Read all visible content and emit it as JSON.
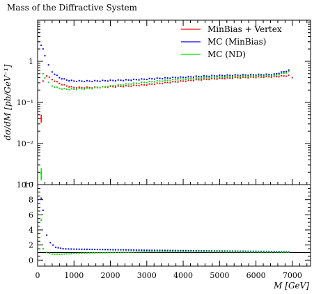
{
  "chart_data": [
    {
      "type": "scatter",
      "title": "Mass of the Diffractive System",
      "ylabel": "dσ/dM [pb/GeV⁻¹]",
      "xlim": [
        0,
        7500
      ],
      "ylim": [
        0.001,
        10
      ],
      "yscale": "log",
      "y_ticks": [
        {
          "value": 1,
          "label": "1"
        },
        {
          "value": 0.1,
          "label": "10⁻¹"
        },
        {
          "value": 0.01,
          "label": "10⁻²"
        },
        {
          "value": 0.001,
          "label": "10⁻³"
        }
      ],
      "legend": "top-right",
      "series": [
        {
          "name": "MinBias + Vertex",
          "color": "#ff0000",
          "points": [
            {
              "x": 100,
              "y": 0.04
            },
            {
              "x": 150,
              "y": 0.33
            },
            {
              "x": 250,
              "y": 0.45
            },
            {
              "x": 400,
              "y": 0.36
            },
            {
              "x": 600,
              "y": 0.29
            },
            {
              "x": 800,
              "y": 0.25
            },
            {
              "x": 1000,
              "y": 0.23
            },
            {
              "x": 1500,
              "y": 0.23
            },
            {
              "x": 2000,
              "y": 0.24
            },
            {
              "x": 2500,
              "y": 0.25
            },
            {
              "x": 3000,
              "y": 0.27
            },
            {
              "x": 3500,
              "y": 0.3
            },
            {
              "x": 4000,
              "y": 0.33
            },
            {
              "x": 4500,
              "y": 0.36
            },
            {
              "x": 5000,
              "y": 0.38
            },
            {
              "x": 5500,
              "y": 0.4
            },
            {
              "x": 6000,
              "y": 0.41
            },
            {
              "x": 6500,
              "y": 0.42
            },
            {
              "x": 6900,
              "y": 0.45
            },
            {
              "x": 7000,
              "y": 0.4
            }
          ]
        },
        {
          "name": "MC (MinBias)",
          "color": "#0000ff",
          "points": [
            {
              "x": 100,
              "y": 2.4
            },
            {
              "x": 150,
              "y": 2.0
            },
            {
              "x": 200,
              "y": 1.4
            },
            {
              "x": 300,
              "y": 0.8
            },
            {
              "x": 400,
              "y": 0.55
            },
            {
              "x": 600,
              "y": 0.4
            },
            {
              "x": 800,
              "y": 0.35
            },
            {
              "x": 1000,
              "y": 0.33
            },
            {
              "x": 1500,
              "y": 0.33
            },
            {
              "x": 2000,
              "y": 0.34
            },
            {
              "x": 2500,
              "y": 0.35
            },
            {
              "x": 3000,
              "y": 0.37
            },
            {
              "x": 3500,
              "y": 0.39
            },
            {
              "x": 4000,
              "y": 0.41
            },
            {
              "x": 4500,
              "y": 0.43
            },
            {
              "x": 5000,
              "y": 0.45
            },
            {
              "x": 5500,
              "y": 0.46
            },
            {
              "x": 6000,
              "y": 0.47
            },
            {
              "x": 6500,
              "y": 0.48
            },
            {
              "x": 6900,
              "y": 0.6
            }
          ]
        },
        {
          "name": "MC (ND)",
          "color": "#00dd00",
          "points": [
            {
              "x": 100,
              "y": 0.0018
            },
            {
              "x": 150,
              "y": 0.5
            },
            {
              "x": 200,
              "y": 0.4
            },
            {
              "x": 300,
              "y": 0.3
            },
            {
              "x": 400,
              "y": 0.25
            },
            {
              "x": 600,
              "y": 0.22
            },
            {
              "x": 800,
              "y": 0.21
            },
            {
              "x": 1000,
              "y": 0.21
            },
            {
              "x": 1500,
              "y": 0.22
            },
            {
              "x": 2000,
              "y": 0.25
            },
            {
              "x": 2500,
              "y": 0.28
            },
            {
              "x": 3000,
              "y": 0.31
            },
            {
              "x": 3500,
              "y": 0.34
            },
            {
              "x": 4000,
              "y": 0.37
            },
            {
              "x": 4500,
              "y": 0.39
            },
            {
              "x": 5000,
              "y": 0.41
            },
            {
              "x": 5500,
              "y": 0.43
            },
            {
              "x": 6000,
              "y": 0.44
            },
            {
              "x": 6500,
              "y": 0.45
            },
            {
              "x": 6900,
              "y": 0.55
            }
          ]
        }
      ]
    },
    {
      "type": "scatter",
      "xlabel": "M [GeV]",
      "xlim": [
        0,
        7500
      ],
      "ylim": [
        -0.8,
        10
      ],
      "x_ticks": [
        0,
        1000,
        2000,
        3000,
        4000,
        5000,
        6000,
        7000
      ],
      "y_ticks": [
        0,
        2,
        4,
        6,
        8
      ],
      "ytop_label": "10",
      "reference_line": 1,
      "series": [
        {
          "name": "MC (MinBias)",
          "color": "#0000ff",
          "points": [
            {
              "x": 100,
              "y": 8.2
            },
            {
              "x": 150,
              "y": 6.6
            },
            {
              "x": 250,
              "y": 3.3
            },
            {
              "x": 350,
              "y": 2.3
            },
            {
              "x": 500,
              "y": 1.7
            },
            {
              "x": 700,
              "y": 1.5
            },
            {
              "x": 1000,
              "y": 1.45
            },
            {
              "x": 1500,
              "y": 1.42
            },
            {
              "x": 2000,
              "y": 1.38
            },
            {
              "x": 2500,
              "y": 1.35
            },
            {
              "x": 3000,
              "y": 1.3
            },
            {
              "x": 3500,
              "y": 1.28
            },
            {
              "x": 4000,
              "y": 1.25
            },
            {
              "x": 4500,
              "y": 1.22
            },
            {
              "x": 5000,
              "y": 1.2
            },
            {
              "x": 5500,
              "y": 1.18
            },
            {
              "x": 6000,
              "y": 1.16
            },
            {
              "x": 6500,
              "y": 1.14
            },
            {
              "x": 6900,
              "y": 1.1
            }
          ]
        },
        {
          "name": "MC (ND)",
          "color": "#00dd00",
          "points": [
            {
              "x": 100,
              "y": 5.3
            },
            {
              "x": 150,
              "y": 1.5
            },
            {
              "x": 250,
              "y": 1.0
            },
            {
              "x": 400,
              "y": 0.8
            },
            {
              "x": 600,
              "y": 0.78
            },
            {
              "x": 800,
              "y": 0.82
            },
            {
              "x": 1000,
              "y": 0.88
            },
            {
              "x": 1500,
              "y": 0.95
            },
            {
              "x": 2000,
              "y": 1.0
            },
            {
              "x": 2500,
              "y": 1.05
            },
            {
              "x": 3000,
              "y": 1.1
            },
            {
              "x": 3500,
              "y": 1.12
            },
            {
              "x": 4000,
              "y": 1.12
            },
            {
              "x": 4500,
              "y": 1.12
            },
            {
              "x": 5000,
              "y": 1.1
            },
            {
              "x": 5500,
              "y": 1.1
            },
            {
              "x": 6000,
              "y": 1.08
            },
            {
              "x": 6500,
              "y": 1.08
            },
            {
              "x": 6900,
              "y": 1.05
            }
          ]
        }
      ]
    }
  ]
}
